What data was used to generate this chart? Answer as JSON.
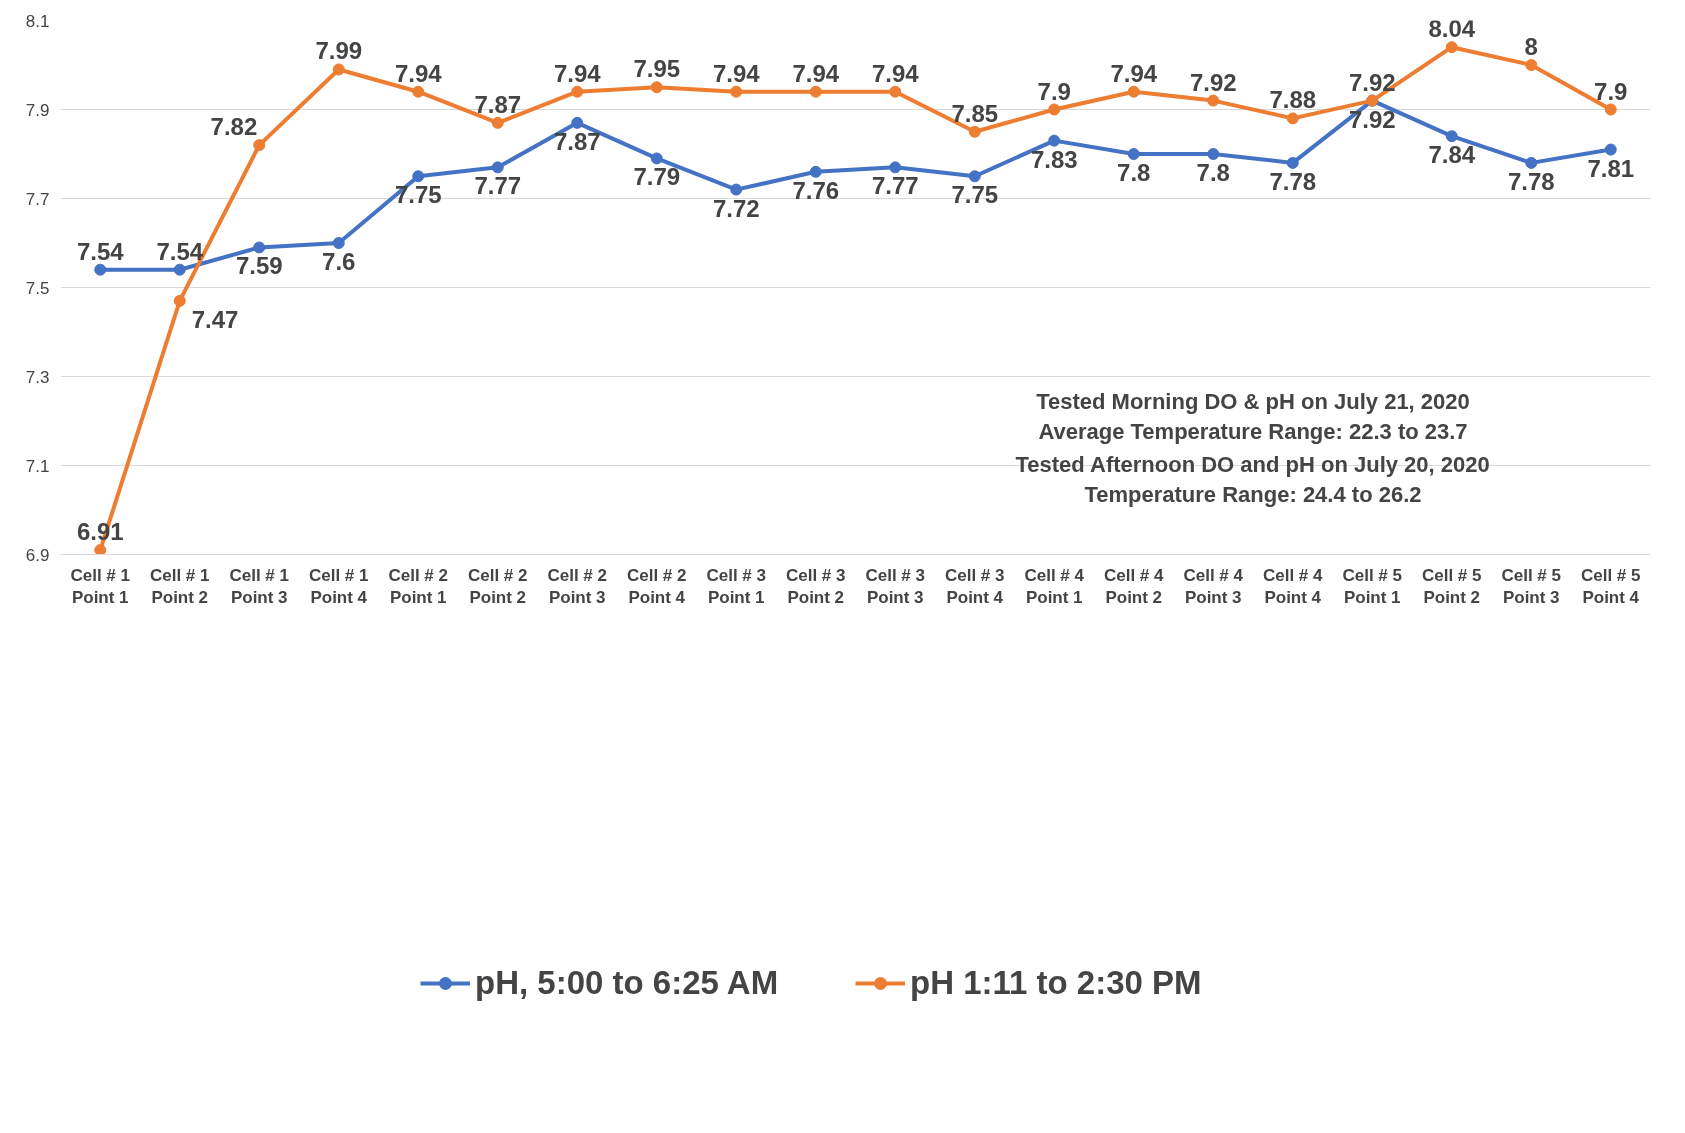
{
  "chart_data": {
    "type": "line",
    "categories": [
      "Cell # 1\nPoint 1",
      "Cell # 1\nPoint 2",
      "Cell # 1\nPoint 3",
      "Cell # 1\nPoint 4",
      "Cell # 2\nPoint 1",
      "Cell # 2\nPoint 2",
      "Cell # 2\nPoint 3",
      "Cell # 2\nPoint 4",
      "Cell # 3\nPoint 1",
      "Cell # 3\nPoint 2",
      "Cell # 3\nPoint 3",
      "Cell # 3\nPoint 4",
      "Cell # 4\nPoint 1",
      "Cell # 4\nPoint 2",
      "Cell # 4\nPoint 3",
      "Cell # 4\nPoint 4",
      "Cell # 5\nPoint 1",
      "Cell # 5\nPoint 2",
      "Cell # 5\nPoint 3",
      "Cell # 5\nPoint 4"
    ],
    "series": [
      {
        "name": "pH, 5:00 to 6:25 AM",
        "color": "#4472c4",
        "values": [
          7.54,
          7.54,
          7.59,
          7.6,
          7.75,
          7.77,
          7.87,
          7.79,
          7.72,
          7.76,
          7.77,
          7.75,
          7.83,
          7.8,
          7.8,
          7.78,
          7.92,
          7.84,
          7.78,
          7.81
        ]
      },
      {
        "name": "pH 1:11 to 2:30 PM",
        "color": "#ed7d31",
        "values": [
          6.91,
          7.47,
          7.82,
          7.99,
          7.94,
          7.87,
          7.94,
          7.95,
          7.94,
          7.94,
          7.94,
          7.85,
          7.9,
          7.94,
          7.92,
          7.88,
          7.92,
          8.04,
          8,
          7.9
        ]
      }
    ],
    "ylim": [
      6.9,
      8.1
    ],
    "yticks": [
      6.9,
      7.1,
      7.3,
      7.5,
      7.7,
      7.9,
      8.1
    ],
    "grid": "y",
    "legend": "bottom",
    "marker": "circle",
    "line_style": "solid",
    "data_labels": true,
    "annotations": [
      "Tested Morning DO & pH on July 21, 2020\nAverage Temperature Range: 22.3 to 23.7",
      "Tested Afternoon DO and pH on July 20, 2020\nTemperature Range: 24.4 to 26.2"
    ]
  }
}
